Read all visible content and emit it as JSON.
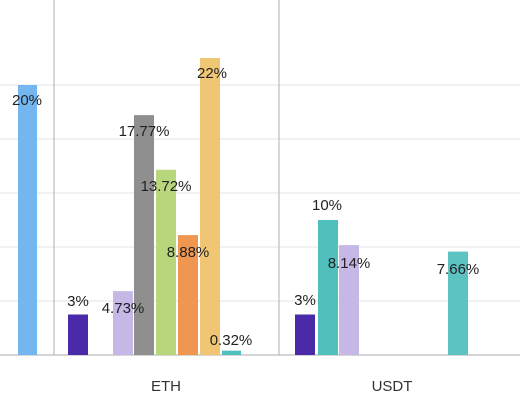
{
  "chart_data": {
    "type": "bar",
    "title": "",
    "xlabel": "",
    "ylabel": "",
    "categories": [
      "",
      "ETH",
      "USDT"
    ],
    "ylim": [
      0,
      24
    ],
    "grid": true,
    "visible_y_ticks": [
      0,
      4,
      8,
      12,
      16,
      20
    ],
    "bars": [
      {
        "group": 0,
        "value": 20,
        "label": "20%",
        "color": "#74b6f0"
      },
      {
        "group": 0,
        "value": 3,
        "label": "3%",
        "color": "#4a2aa8"
      },
      {
        "group": 1,
        "value": 4.73,
        "label": "4.73%",
        "color": "#c5b8e6"
      },
      {
        "group": 1,
        "value": 17.77,
        "label": "17.77%",
        "color": "#8f8f8f"
      },
      {
        "group": 1,
        "value": 13.72,
        "label": "13.72%",
        "color": "#b8d67c"
      },
      {
        "group": 1,
        "value": 8.88,
        "label": "8.88%",
        "color": "#ef9650"
      },
      {
        "group": 1,
        "value": 22,
        "label": "22%",
        "color": "#f0c674"
      },
      {
        "group": 1,
        "value": 0.32,
        "label": "0.32%",
        "color": "#4fc0bc"
      },
      {
        "group": 2,
        "value": 3,
        "label": "3%",
        "color": "#4a2aa8"
      },
      {
        "group": 2,
        "value": 10,
        "label": "10%",
        "color": "#4fc0bc"
      },
      {
        "group": 2,
        "value": 8.14,
        "label": "8.14%",
        "color": "#c5b8e6"
      },
      {
        "group": 2,
        "value": 7.66,
        "label": "7.66%",
        "color": "#5cc2c2"
      }
    ]
  }
}
